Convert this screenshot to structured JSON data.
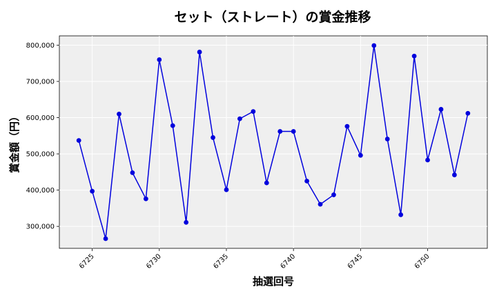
{
  "chart_data": {
    "type": "line",
    "title": "セット（ストレート）の賞金推移",
    "xlabel": "抽選回号",
    "ylabel": "賞金額（円）",
    "x": [
      6724,
      6725,
      6726,
      6727,
      6728,
      6729,
      6730,
      6731,
      6732,
      6733,
      6734,
      6735,
      6736,
      6737,
      6738,
      6739,
      6740,
      6741,
      6742,
      6743,
      6744,
      6745,
      6746,
      6747,
      6748,
      6749,
      6750,
      6751,
      6752,
      6753
    ],
    "series": [
      {
        "values": [
          537000,
          397000,
          266000,
          610000,
          448000,
          376000,
          760000,
          578000,
          311000,
          781000,
          545000,
          401000,
          597000,
          617000,
          420000,
          562000,
          562000,
          425000,
          361000,
          387000,
          576000,
          496000,
          799000,
          541000,
          332000,
          770000,
          483000,
          623000,
          442000,
          612000
        ],
        "color": "#0000dd"
      }
    ],
    "xticks": [
      6725,
      6730,
      6735,
      6740,
      6745,
      6750
    ],
    "xtick_labels": [
      "6725",
      "6730",
      "6735",
      "6740",
      "6745",
      "6750"
    ],
    "yticks": [
      300000,
      400000,
      500000,
      600000,
      700000,
      800000
    ],
    "ytick_labels": [
      "300,000",
      "400,000",
      "500,000",
      "600,000",
      "700,000",
      "800,000"
    ],
    "xlim": [
      6722.55,
      6754.45
    ],
    "ylim": [
      239350,
      825650
    ],
    "grid": true,
    "plot_background": "#efefef",
    "grid_color": "#ffffff"
  }
}
